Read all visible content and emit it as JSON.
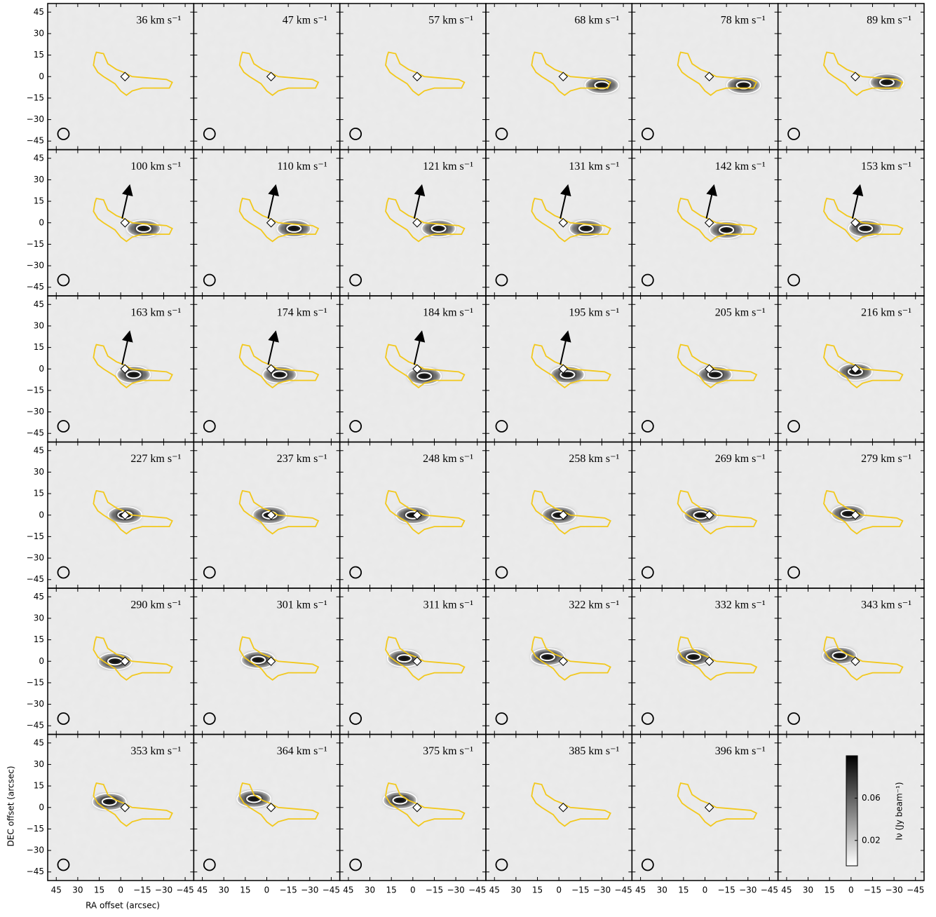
{
  "chart_data": {
    "type": "channel_map",
    "panels": [
      "36 km s⁻¹",
      "47 km s⁻¹",
      "57 km s⁻¹",
      "68 km s⁻¹",
      "78 km s⁻¹",
      "89 km s⁻¹",
      "100 km s⁻¹",
      "110 km s⁻¹",
      "121 km s⁻¹",
      "131 km s⁻¹",
      "142 km s⁻¹",
      "153 km s⁻¹",
      "163 km s⁻¹",
      "174 km s⁻¹",
      "184 km s⁻¹",
      "195 km s⁻¹",
      "205 km s⁻¹",
      "216 km s⁻¹",
      "227 km s⁻¹",
      "237 km s⁻¹",
      "248 km s⁻¹",
      "258 km s⁻¹",
      "269 km s⁻¹",
      "279 km s⁻¹",
      "290 km s⁻¹",
      "301 km s⁻¹",
      "311 km s⁻¹",
      "322 km s⁻¹",
      "332 km s⁻¹",
      "343 km s⁻¹",
      "353 km s⁻¹",
      "364 km s⁻¹",
      "375 km s⁻¹",
      "385 km s⁻¹",
      "396 km s⁻¹"
    ],
    "peaks": [
      null,
      null,
      null,
      {
        "ra": -30,
        "dec": -6
      },
      {
        "ra": -27,
        "dec": -6
      },
      {
        "ra": -25,
        "dec": -4
      },
      {
        "ra": -16,
        "dec": -4
      },
      {
        "ra": -19,
        "dec": -4
      },
      {
        "ra": -18,
        "dec": -4
      },
      {
        "ra": -19,
        "dec": -4
      },
      {
        "ra": -15,
        "dec": -5
      },
      {
        "ra": -10,
        "dec": -4
      },
      {
        "ra": -9,
        "dec": -4
      },
      {
        "ra": -9,
        "dec": -4
      },
      {
        "ra": -8,
        "dec": -5
      },
      {
        "ra": -6,
        "dec": -4
      },
      {
        "ra": -7,
        "dec": -4
      },
      {
        "ra": -3,
        "dec": -2
      },
      {
        "ra": -3,
        "dec": 0
      },
      {
        "ra": -2,
        "dec": 0
      },
      {
        "ra": 0,
        "dec": 0
      },
      {
        "ra": 0,
        "dec": 0
      },
      {
        "ra": 3,
        "dec": 0
      },
      {
        "ra": 2,
        "dec": 1
      },
      {
        "ra": 4,
        "dec": 0
      },
      {
        "ra": 6,
        "dec": 1
      },
      {
        "ra": 6,
        "dec": 2
      },
      {
        "ra": 8,
        "dec": 3
      },
      {
        "ra": 8,
        "dec": 3
      },
      {
        "ra": 8,
        "dec": 4
      },
      {
        "ra": 8,
        "dec": 4
      },
      {
        "ra": 9,
        "dec": 6
      },
      {
        "ra": 9,
        "dec": 5
      },
      null,
      null
    ],
    "xlim": [
      51,
      -51
    ],
    "ylim": [
      -51,
      51
    ],
    "xticks": [
      45,
      30,
      15,
      0,
      {
        "value": -15,
        "label": "−15"
      },
      {
        "value": -30,
        "label": "−30"
      },
      {
        "value": -45,
        "label": "−45"
      }
    ],
    "yticks": [
      45,
      30,
      15,
      0,
      {
        "value": -15,
        "label": "−15"
      },
      {
        "value": -30,
        "label": "−30"
      },
      {
        "value": -45,
        "label": "−45"
      }
    ],
    "xlabel": "RA offset (arcsec)",
    "ylabel": "DEC offset (arcsec)",
    "colorbar": {
      "lim": [
        -0.004,
        0.1
      ],
      "ticks": [
        0.02,
        0.06
      ],
      "label": "Iν (Jy beam⁻¹)"
    }
  }
}
